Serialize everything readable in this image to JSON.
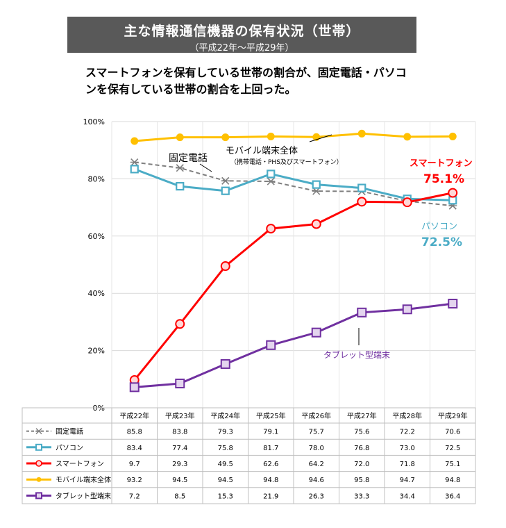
{
  "header": {
    "title": "主な情報通信機器の保有状況（世帯）",
    "subtitle": "（平成22年～平成29年）",
    "headline_line1": "スマートフォンを保有している世帯の割合が、固定電話・パソコ",
    "headline_line2": "ンを保有している世帯の割合を上回った。"
  },
  "chart_data": {
    "type": "line",
    "categories": [
      "平成22年",
      "平成23年",
      "平成24年",
      "平成25年",
      "平成26年",
      "平成27年",
      "平成28年",
      "平成29年"
    ],
    "ylim": [
      0,
      100
    ],
    "yticks": [
      "0%",
      "20%",
      "40%",
      "60%",
      "80%",
      "100%"
    ],
    "grid": true,
    "series": [
      {
        "name": "固定電話",
        "color": "#7f7f7f",
        "marker": "asterisk",
        "dashed": true,
        "values": [
          85.8,
          83.8,
          79.3,
          79.1,
          75.7,
          75.6,
          72.2,
          70.6
        ]
      },
      {
        "name": "パソコン",
        "color": "#4bacc6",
        "marker": "square",
        "values": [
          83.4,
          77.4,
          75.8,
          81.7,
          78.0,
          76.8,
          73.0,
          72.5
        ]
      },
      {
        "name": "スマートフォン",
        "color": "#ff0000",
        "marker": "circle",
        "values": [
          9.7,
          29.3,
          49.5,
          62.6,
          64.2,
          72.0,
          71.8,
          75.1
        ]
      },
      {
        "name": "モバイル端末全体",
        "color": "#ffc000",
        "marker": "dot",
        "values": [
          93.2,
          94.5,
          94.5,
          94.8,
          94.6,
          95.8,
          94.7,
          94.8
        ]
      },
      {
        "name": "タブレット型端末",
        "color": "#7030a0",
        "marker": "square-filled",
        "values": [
          7.2,
          8.5,
          15.3,
          21.9,
          26.3,
          33.3,
          34.4,
          36.4
        ]
      }
    ],
    "annotations": {
      "landline": "固定電話",
      "mobile": "モバイル端末全体",
      "mobile_note": "（携帯電話・PHS及びスマートフォン）",
      "smartphone": "スマートフォン",
      "smartphone_value": "75.1%",
      "pc": "パソコン",
      "pc_value": "72.5%",
      "tablet": "タブレット型端末"
    }
  }
}
